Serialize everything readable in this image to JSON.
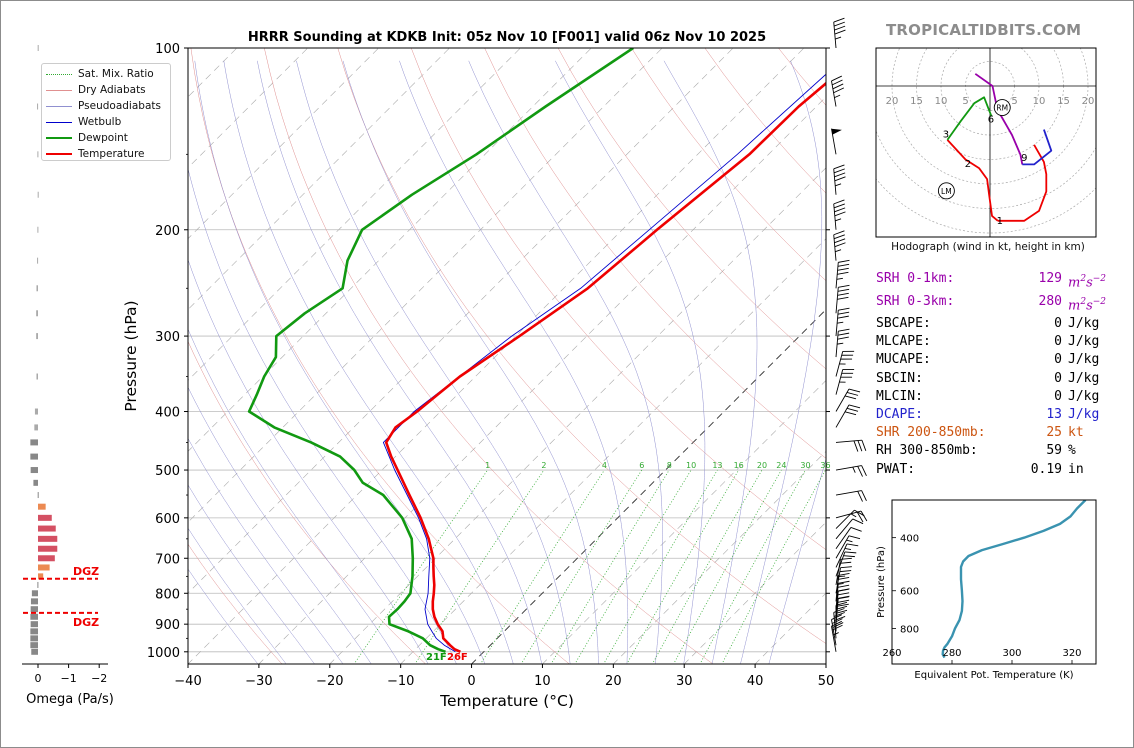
{
  "brand": "TROPICALTIDBITS.COM",
  "colors": {
    "temperature": "#ee0000",
    "dewpoint": "#119911",
    "wetbulb": "#0000cc",
    "dry_adiabat": "#e09090",
    "pseudoadiabat": "#9090d0",
    "mixing_ratio": "#33aa33",
    "srh": "#9900aa",
    "dcape": "#2222cc",
    "shear": "#cc5511",
    "dgz": "#ee0000",
    "omega_neg": "#888888",
    "theta_e": "#3a93b0"
  },
  "skewt": {
    "chart_data": {
      "type": "line",
      "title": "HRRR Sounding at KDKB Init: 05z Nov 10 [F001] valid 06z Nov 10 2025",
      "xlabel": "Temperature (°C)",
      "ylabel": "Pressure (hPa)",
      "xlim": [
        -40,
        50
      ],
      "ylim": [
        1050,
        100
      ],
      "y_scale": "log",
      "x_ticks": [
        -40,
        -30,
        -20,
        -10,
        0,
        10,
        20,
        30,
        40,
        50
      ],
      "y_ticks": [
        100,
        200,
        300,
        400,
        500,
        600,
        700,
        800,
        900,
        1000
      ],
      "skew": "45 degrees",
      "series": [
        {
          "name": "Temperature",
          "p": [
            1000,
            990,
            975,
            950,
            925,
            900,
            875,
            850,
            825,
            800,
            775,
            750,
            725,
            700,
            650,
            600,
            550,
            500,
            475,
            450,
            425,
            400,
            375,
            350,
            300,
            250,
            200,
            150,
            125,
            100
          ],
          "t": [
            -3.3,
            -4.5,
            -5.7,
            -7.6,
            -8.7,
            -10.4,
            -11.9,
            -13.2,
            -14.3,
            -15.3,
            -16.4,
            -17.7,
            -19.0,
            -20.3,
            -23.7,
            -27.8,
            -32.6,
            -37.8,
            -40.6,
            -43.3,
            -44.1,
            -43.3,
            -42.8,
            -42.2,
            -39.5,
            -36.6,
            -35.1,
            -32.7,
            -32.5,
            -31.0
          ]
        },
        {
          "name": "Dewpoint",
          "p": [
            1000,
            990,
            975,
            950,
            925,
            900,
            875,
            850,
            825,
            800,
            750,
            700,
            650,
            600,
            550,
            525,
            500,
            475,
            450,
            425,
            400,
            375,
            350,
            325,
            300,
            275,
            250,
            225,
            200,
            175,
            150,
            125,
            100
          ],
          "t": [
            -5.4,
            -6.8,
            -8.5,
            -10.5,
            -13.5,
            -17.2,
            -18.3,
            -18.2,
            -18.3,
            -18.6,
            -20.7,
            -23.2,
            -26.1,
            -30.4,
            -36.3,
            -40.9,
            -43.9,
            -47.8,
            -53.9,
            -61.2,
            -67.0,
            -68.3,
            -69.8,
            -70.9,
            -73.8,
            -73.0,
            -71.2,
            -74.4,
            -76.7,
            -74.6,
            -71.2,
            -68.2,
            -64.1
          ]
        },
        {
          "name": "Wetbulb",
          "p": [
            1000,
            975,
            950,
            925,
            900,
            850,
            800,
            750,
            700,
            650,
            600,
            500,
            450,
            400,
            300,
            250,
            200,
            150,
            100
          ],
          "t": [
            -4.0,
            -6.5,
            -8.6,
            -10.2,
            -11.8,
            -14.3,
            -16.1,
            -18.4,
            -20.8,
            -24.0,
            -28.1,
            -38.2,
            -43.7,
            -43.7,
            -40.6,
            -37.6,
            -36.2,
            -34.4,
            -32.8
          ]
        }
      ],
      "dry_adiabats_theta_K": [
        -30,
        -10,
        10,
        30,
        50,
        70,
        90,
        110,
        130,
        150,
        170,
        190,
        210,
        230,
        250,
        270,
        290,
        310,
        330,
        350,
        370,
        390,
        410,
        430
      ],
      "pseudoadiabat_labels": [],
      "mixing_ratio_labels": [
        "1",
        "2",
        "4",
        "6",
        "8",
        "10",
        "13",
        "16",
        "20",
        "24",
        "30",
        "36"
      ],
      "mixing_ratio_values": [
        1,
        2,
        4,
        6,
        8,
        10,
        13,
        16,
        20,
        24,
        30,
        36
      ],
      "annotations": {
        "lcl_label": "21F",
        "sfc_label": "26F"
      },
      "legend": [
        "Sat. Mix. Ratio",
        "Dry Adiabats",
        "Pseudoadiabats",
        "Wetbulb",
        "Dewpoint",
        "Temperature"
      ],
      "legend_position": "top-left",
      "grid": true
    }
  },
  "omega": {
    "chart_data": {
      "type": "bar",
      "xlabel": "Omega (Pa/s)",
      "x_ticks": [
        "0",
        "−1",
        "−2"
      ],
      "x_tick_values": [
        0,
        -1,
        -2
      ],
      "xlim": [
        0.3,
        -2.5
      ],
      "y_scale": "log",
      "p": [
        1000,
        975,
        950,
        925,
        900,
        875,
        850,
        825,
        800,
        775,
        750,
        725,
        700,
        675,
        650,
        625,
        600,
        575,
        550,
        525,
        500,
        475,
        450,
        425,
        400,
        350,
        300,
        275,
        250,
        225,
        200,
        175,
        150,
        125,
        100
      ],
      "values": [
        0.22,
        0.25,
        0.25,
        0.25,
        0.24,
        0.25,
        0.24,
        0.23,
        0.2,
        0.02,
        -0.17,
        -0.38,
        -0.55,
        -0.63,
        -0.63,
        -0.58,
        -0.45,
        -0.25,
        0.01,
        0.15,
        0.24,
        0.25,
        0.25,
        0.12,
        0.1,
        0.05,
        0.06,
        0.06,
        0.05,
        0.03,
        0.02,
        0.01,
        0.02,
        0.03,
        0.01
      ],
      "dgz_label": "DGZ",
      "dgz_pressures": [
        862,
        757
      ]
    }
  },
  "legend_labels": {
    "sat_mix": "Sat. Mix. Ratio",
    "dry": "Dry Adiabats",
    "pseudo": "Pseudoadiabats",
    "wetbulb": "Wetbulb",
    "dewpoint": "Dewpoint",
    "temperature": "Temperature"
  },
  "hodograph": {
    "caption": "Hodograph (wind in kt, height in km)",
    "ring_labels": [
      "20",
      "15",
      "10",
      "5",
      "5",
      "10",
      "15",
      "20"
    ],
    "chart_data": {
      "type": "line",
      "units": "kt",
      "rings": [
        5,
        10,
        15,
        20,
        25,
        30
      ],
      "segments": [
        {
          "name": "0-1 km",
          "color": "#ee0000",
          "u": [
            1.6,
            4.0,
            7.0,
            10.0,
            11.5,
            11.5,
            11.0,
            9.0
          ],
          "v": [
            -27.5,
            -27.5,
            -27.5,
            -25.5,
            -21.5,
            -18.0,
            -15.5,
            -12.0
          ]
        },
        {
          "name": "1-3 km",
          "color": "#ee0000",
          "u": [
            1.6,
            0.4,
            -0.2,
            -0.6,
            -2.2,
            -5.0,
            -8.7
          ],
          "v": [
            -27.5,
            -26.5,
            -22.0,
            -19.0,
            -16.8,
            -15.0,
            -11.0
          ]
        },
        {
          "name": "3-6 km",
          "color": "#119911",
          "u": [
            -8.7,
            -6.0,
            -3.2,
            -1.2,
            0.3
          ],
          "v": [
            -11.0,
            -7.2,
            -3.5,
            -2.3,
            -6.2
          ]
        },
        {
          "name": "6-9 km",
          "color": "#9900aa",
          "u": [
            -3.0,
            0.5,
            1.5,
            4.5,
            6.2,
            6.6
          ],
          "v": [
            2.5,
            0.0,
            -4.8,
            -10.0,
            -14.0,
            -16.0
          ]
        },
        {
          "name": "9-12 km",
          "color": "#2222cc",
          "u": [
            6.6,
            9.0,
            12.5,
            11.0
          ],
          "v": [
            -16.0,
            -16.0,
            -13.2,
            -8.9
          ]
        }
      ],
      "height_labels": [
        {
          "label": "1",
          "u": 2.0,
          "v": -27.3
        },
        {
          "label": "2",
          "u": -4.5,
          "v": -15.7
        },
        {
          "label": "3",
          "u": -9.0,
          "v": -9.7
        },
        {
          "label": "6",
          "u": 0.2,
          "v": -6.6
        },
        {
          "label": "9",
          "u": 7.0,
          "v": -14.5
        }
      ],
      "markers": [
        {
          "label": "RM",
          "u": 2.5,
          "v": -4.4
        },
        {
          "label": "LM",
          "u": -8.9,
          "v": -21.4
        }
      ]
    }
  },
  "indices": [
    {
      "label": "SRH 0-1km:",
      "value": "129",
      "unit": "m2s-2",
      "unit_html": true,
      "color_key": "srh"
    },
    {
      "label": "SRH 0-3km:",
      "value": "280",
      "unit": "m2s-2",
      "unit_html": true,
      "color_key": "srh"
    },
    {
      "label": "SBCAPE:",
      "value": "0",
      "unit": "J/kg"
    },
    {
      "label": "MLCAPE:",
      "value": "0",
      "unit": "J/kg"
    },
    {
      "label": "MUCAPE:",
      "value": "0",
      "unit": "J/kg"
    },
    {
      "label": "SBCIN:",
      "value": "0",
      "unit": "J/kg"
    },
    {
      "label": "MLCIN:",
      "value": "0",
      "unit": "J/kg"
    },
    {
      "label": "DCAPE:",
      "value": "13",
      "unit": "J/kg",
      "color_key": "dcape"
    },
    {
      "label": "SHR 200-850mb:",
      "value": "25",
      "unit": "kt",
      "color_key": "shear"
    },
    {
      "label": "RH 300-850mb:",
      "value": "59",
      "unit": "%"
    },
    {
      "label": "PWAT:",
      "value": "0.19",
      "unit": "in"
    }
  ],
  "theta_e": {
    "chart_data": {
      "type": "line",
      "xlabel": "Equivalent Pot. Temperature (K)",
      "ylabel": "Pressure (hPa)",
      "xlim": [
        260,
        328
      ],
      "ylim": [
        1050,
        300
      ],
      "y_scale": "log",
      "x_ticks": [
        260,
        280,
        300,
        320
      ],
      "y_ticks": [
        400,
        600,
        800
      ],
      "p": [
        1000,
        975,
        950,
        925,
        900,
        850,
        800,
        750,
        700,
        650,
        600,
        550,
        500,
        480,
        460,
        440,
        420,
        400,
        380,
        360,
        340,
        320,
        300
      ],
      "theta_e": [
        277.5,
        276.9,
        277.0,
        277.5,
        278.5,
        280.0,
        281.0,
        282.5,
        283.3,
        283.5,
        283.3,
        283.0,
        283.0,
        283.7,
        285.5,
        290.0,
        297.0,
        304.0,
        310.5,
        316.0,
        319.5,
        321.7,
        324.5
      ]
    }
  },
  "winds": {
    "p": [
      1000,
      975,
      950,
      925,
      900,
      875,
      850,
      825,
      800,
      775,
      750,
      725,
      700,
      675,
      650,
      625,
      600,
      550,
      500,
      450,
      425,
      400,
      375,
      350,
      325,
      300,
      275,
      250,
      225,
      200,
      175,
      150,
      125,
      100
    ],
    "dir_deg": [
      350,
      350,
      355,
      0,
      5,
      5,
      5,
      5,
      10,
      10,
      20,
      25,
      30,
      35,
      40,
      45,
      75,
      80,
      80,
      85,
      30,
      30,
      15,
      15,
      5,
      5,
      5,
      5,
      355,
      355,
      355,
      350,
      350,
      355
    ],
    "speed_kt": [
      27,
      30,
      32,
      30,
      30,
      28,
      28,
      27,
      25,
      22,
      18,
      15,
      13,
      12,
      12,
      15,
      18,
      20,
      25,
      30,
      30,
      30,
      33,
      35,
      35,
      35,
      38,
      45,
      45,
      45,
      45,
      50,
      45,
      45
    ]
  }
}
